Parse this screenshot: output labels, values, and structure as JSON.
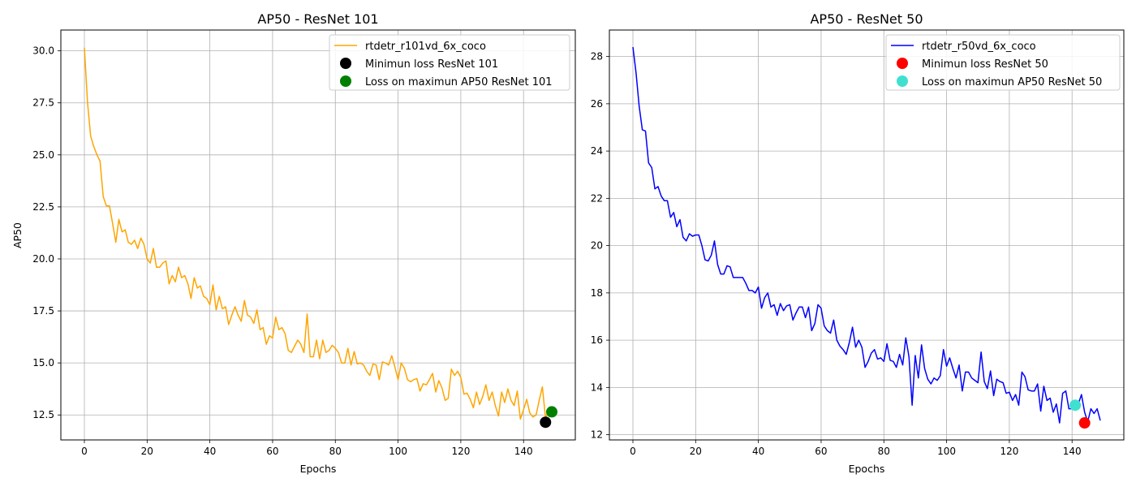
{
  "chart_data": [
    {
      "type": "line",
      "title": "AP50 - ResNet 101",
      "xlabel": "Epochs",
      "ylabel": "AP50",
      "xlim": [
        -7.5,
        156.5
      ],
      "ylim": [
        11.3,
        31.0
      ],
      "xticks": [
        0,
        20,
        40,
        60,
        80,
        100,
        120,
        140
      ],
      "xtick_labels": [
        "0",
        "20",
        "40",
        "60",
        "80",
        "100",
        "120",
        "140"
      ],
      "yticks": [
        12.5,
        15.0,
        17.5,
        20.0,
        22.5,
        25.0,
        27.5,
        30.0
      ],
      "ytick_labels": [
        "12.5",
        "15.0",
        "17.5",
        "20.0",
        "22.5",
        "25.0",
        "27.5",
        "30.0"
      ],
      "grid": true,
      "legend_position": "top-right",
      "series": [
        {
          "name": "rtdetr_r101vd_6x_coco",
          "color": "#ffa500",
          "x": [
            0,
            1,
            2,
            3,
            4,
            5,
            6,
            7,
            8,
            9,
            10,
            11,
            12,
            13,
            14,
            15,
            16,
            17,
            18,
            19,
            20,
            21,
            22,
            23,
            24,
            25,
            26,
            27,
            28,
            29,
            30,
            31,
            32,
            33,
            34,
            35,
            36,
            37,
            38,
            39,
            40,
            41,
            42,
            43,
            44,
            45,
            46,
            47,
            48,
            49,
            50,
            51,
            52,
            53,
            54,
            55,
            56,
            57,
            58,
            59,
            60,
            61,
            62,
            63,
            64,
            65,
            66,
            67,
            68,
            69,
            70,
            71,
            72,
            73,
            74,
            75,
            76,
            77,
            78,
            79,
            80,
            81,
            82,
            83,
            84,
            85,
            86,
            87,
            88,
            89,
            90,
            91,
            92,
            93,
            94,
            95,
            96,
            97,
            98,
            99,
            100,
            101,
            102,
            103,
            104,
            105,
            106,
            107,
            108,
            109,
            110,
            111,
            112,
            113,
            114,
            115,
            116,
            117,
            118,
            119,
            120,
            121,
            122,
            123,
            124,
            125,
            126,
            127,
            128,
            129,
            130,
            131,
            132,
            133,
            134,
            135,
            136,
            137,
            138,
            139,
            140,
            141,
            142,
            143,
            144,
            145,
            146,
            147,
            148,
            149
          ],
          "y": [
            30.15,
            27.5,
            25.9,
            25.4,
            25.0,
            24.7,
            23.0,
            22.55,
            22.55,
            21.7,
            20.8,
            21.9,
            21.3,
            21.4,
            20.8,
            20.7,
            20.9,
            20.5,
            21.0,
            20.7,
            20.0,
            19.8,
            20.5,
            19.6,
            19.6,
            19.8,
            19.9,
            18.8,
            19.2,
            18.9,
            19.6,
            19.1,
            19.2,
            18.8,
            18.1,
            19.1,
            18.6,
            18.7,
            18.2,
            18.1,
            17.8,
            18.75,
            17.55,
            18.2,
            17.6,
            17.7,
            16.85,
            17.3,
            17.7,
            17.3,
            17.0,
            18.0,
            17.3,
            17.2,
            16.9,
            17.55,
            16.6,
            16.7,
            15.9,
            16.3,
            16.2,
            17.2,
            16.6,
            16.7,
            16.4,
            15.6,
            15.5,
            15.8,
            16.1,
            15.9,
            15.5,
            17.35,
            15.3,
            15.3,
            16.1,
            15.2,
            16.1,
            15.5,
            15.6,
            15.85,
            15.7,
            15.5,
            15.0,
            15.0,
            15.7,
            14.9,
            15.55,
            14.95,
            15.0,
            14.9,
            14.6,
            14.4,
            14.95,
            14.9,
            14.2,
            15.05,
            15.0,
            14.9,
            15.35,
            14.8,
            14.2,
            15.0,
            14.75,
            14.2,
            14.1,
            14.2,
            14.25,
            13.65,
            14.0,
            13.95,
            14.2,
            14.5,
            13.6,
            14.15,
            13.8,
            13.2,
            13.3,
            14.7,
            14.4,
            14.6,
            14.3,
            13.5,
            13.55,
            13.25,
            12.85,
            13.6,
            13.0,
            13.4,
            13.95,
            13.2,
            13.6,
            12.95,
            12.45,
            13.6,
            13.1,
            13.75,
            13.2,
            12.95,
            13.65,
            12.3,
            12.75,
            13.25,
            12.6,
            12.4,
            12.5,
            13.2,
            13.85,
            12.35,
            12.7,
            12.65
          ]
        }
      ],
      "markers": [
        {
          "name": "Minimun loss ResNet 101",
          "color": "#000000",
          "x": 147,
          "y": 12.15
        },
        {
          "name": "Loss on maximun AP50 ResNet 101",
          "color": "#008000",
          "x": 149,
          "y": 12.65
        }
      ]
    },
    {
      "type": "line",
      "title": "AP50 - ResNet 50",
      "xlabel": "Epochs",
      "ylabel": "",
      "xlim": [
        -7.5,
        156.5
      ],
      "ylim": [
        11.78,
        29.12
      ],
      "xticks": [
        0,
        20,
        40,
        60,
        80,
        100,
        120,
        140
      ],
      "xtick_labels": [
        "0",
        "20",
        "40",
        "60",
        "80",
        "100",
        "120",
        "140"
      ],
      "yticks": [
        12,
        14,
        16,
        18,
        20,
        22,
        24,
        26,
        28
      ],
      "ytick_labels": [
        "12",
        "14",
        "16",
        "18",
        "20",
        "22",
        "24",
        "26",
        "28"
      ],
      "grid": true,
      "legend_position": "top-right",
      "series": [
        {
          "name": "rtdetr_r50vd_6x_coco",
          "color": "#0000ff",
          "x": [
            0,
            1,
            2,
            3,
            4,
            5,
            6,
            7,
            8,
            9,
            10,
            11,
            12,
            13,
            14,
            15,
            16,
            17,
            18,
            19,
            20,
            21,
            22,
            23,
            24,
            25,
            26,
            27,
            28,
            29,
            30,
            31,
            32,
            33,
            34,
            35,
            36,
            37,
            38,
            39,
            40,
            41,
            42,
            43,
            44,
            45,
            46,
            47,
            48,
            49,
            50,
            51,
            52,
            53,
            54,
            55,
            56,
            57,
            58,
            59,
            60,
            61,
            62,
            63,
            64,
            65,
            66,
            67,
            68,
            69,
            70,
            71,
            72,
            73,
            74,
            75,
            76,
            77,
            78,
            79,
            80,
            81,
            82,
            83,
            84,
            85,
            86,
            87,
            88,
            89,
            90,
            91,
            92,
            93,
            94,
            95,
            96,
            97,
            98,
            99,
            100,
            101,
            102,
            103,
            104,
            105,
            106,
            107,
            108,
            109,
            110,
            111,
            112,
            113,
            114,
            115,
            116,
            117,
            118,
            119,
            120,
            121,
            122,
            123,
            124,
            125,
            126,
            127,
            128,
            129,
            130,
            131,
            132,
            133,
            134,
            135,
            136,
            137,
            138,
            139,
            140,
            141,
            142,
            143,
            144,
            145,
            146,
            147,
            148,
            149
          ],
          "y": [
            28.4,
            27.3,
            25.9,
            24.9,
            24.85,
            23.5,
            23.3,
            22.4,
            22.5,
            22.1,
            21.9,
            21.9,
            21.2,
            21.4,
            20.8,
            21.1,
            20.35,
            20.2,
            20.5,
            20.4,
            20.45,
            20.45,
            20.0,
            19.4,
            19.35,
            19.6,
            20.2,
            19.2,
            18.8,
            18.8,
            19.15,
            19.1,
            18.65,
            18.65,
            18.65,
            18.65,
            18.4,
            18.1,
            18.1,
            18.0,
            18.25,
            17.35,
            17.8,
            18.0,
            17.4,
            17.5,
            17.05,
            17.55,
            17.25,
            17.45,
            17.5,
            16.85,
            17.15,
            17.4,
            17.4,
            16.95,
            17.4,
            16.4,
            16.7,
            17.5,
            17.35,
            16.6,
            16.4,
            16.3,
            16.85,
            16.0,
            15.75,
            15.6,
            15.4,
            15.9,
            16.55,
            15.7,
            16.0,
            15.7,
            14.85,
            15.1,
            15.45,
            15.6,
            15.2,
            15.25,
            15.1,
            15.85,
            15.15,
            15.1,
            14.85,
            15.4,
            14.95,
            16.1,
            15.3,
            13.25,
            15.35,
            14.4,
            15.8,
            14.8,
            14.35,
            14.15,
            14.4,
            14.3,
            14.5,
            15.6,
            14.9,
            15.25,
            14.8,
            14.4,
            14.95,
            13.85,
            14.65,
            14.65,
            14.4,
            14.3,
            14.2,
            15.5,
            14.25,
            13.95,
            14.7,
            13.65,
            14.35,
            14.25,
            14.2,
            13.75,
            13.8,
            13.45,
            13.7,
            13.25,
            14.65,
            14.45,
            13.9,
            13.85,
            13.85,
            14.15,
            13.0,
            14.05,
            13.45,
            13.55,
            12.95,
            13.3,
            12.5,
            13.75,
            13.85,
            13.1,
            13.1,
            13.25,
            13.3,
            13.7,
            12.95,
            12.55,
            13.1,
            12.9,
            13.1,
            12.6
          ]
        }
      ],
      "markers": [
        {
          "name": "Minimun loss ResNet 50",
          "color": "#ff0000",
          "x": 144,
          "y": 12.5
        },
        {
          "name": "Loss on maximun AP50 ResNet 50",
          "color": "#40e0d0",
          "x": 141,
          "y": 13.25
        }
      ]
    }
  ]
}
